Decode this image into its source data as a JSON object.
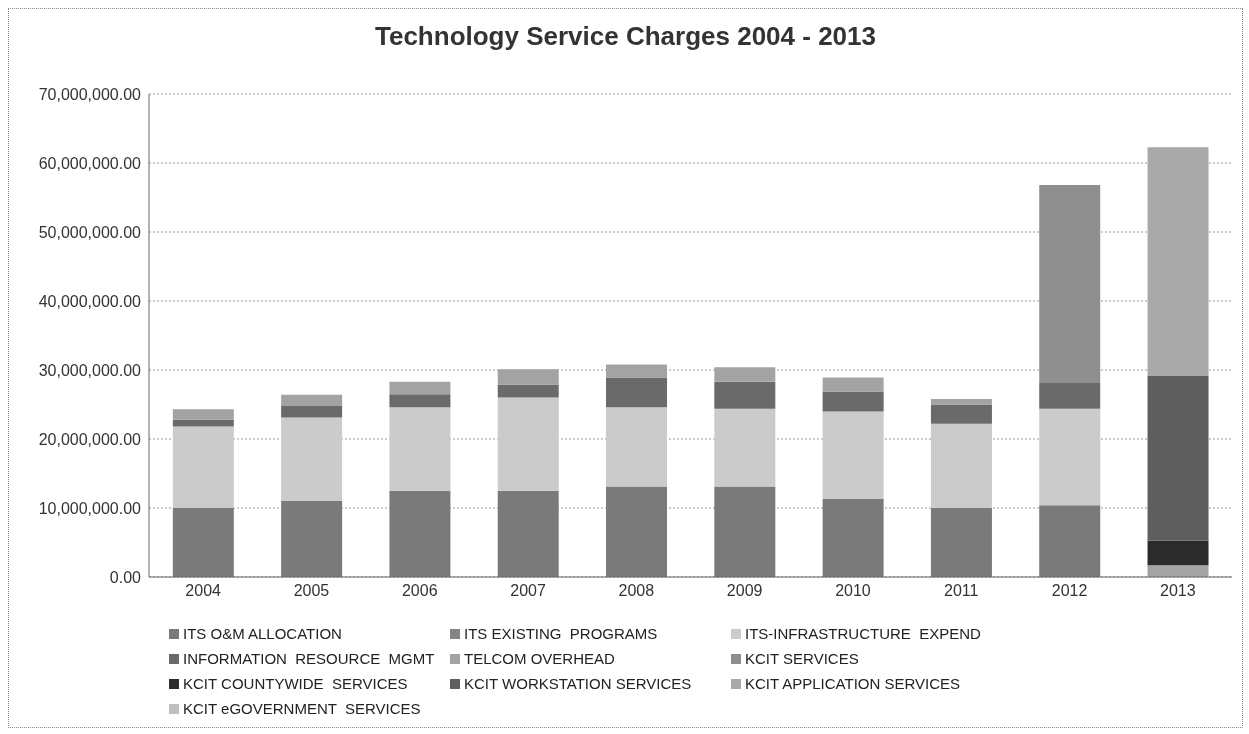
{
  "chart_data": {
    "type": "bar",
    "title": "Technology Service Charges 2004 - 2013",
    "stacked": true,
    "grid": "y",
    "legend": "bottom",
    "categories": [
      "2004",
      "2005",
      "2006",
      "2007",
      "2008",
      "2009",
      "2010",
      "2011",
      "2012",
      "2013"
    ],
    "ylim": [
      0,
      70000000
    ],
    "yticks": [
      {
        "value": 0,
        "label": "0.00"
      },
      {
        "value": 10000000,
        "label": "10,000,000.00"
      },
      {
        "value": 20000000,
        "label": "20,000,000.00"
      },
      {
        "value": 30000000,
        "label": "30,000,000.00"
      },
      {
        "value": 40000000,
        "label": "40,000,000.00"
      },
      {
        "value": 50000000,
        "label": "50,000,000.00"
      },
      {
        "value": 60000000,
        "label": "60,000,000.00"
      },
      {
        "value": 70000000,
        "label": "70,000,000.00"
      }
    ],
    "series": [
      {
        "name": "ITS O&M ALLOCATION",
        "color": "#7a7a7a",
        "values": [
          10000000,
          11000000,
          12500000,
          12500000,
          13100000,
          13100000,
          11300000,
          10000000,
          10400000,
          null
        ]
      },
      {
        "name": "ITS EXISTING  PROGRAMS",
        "color": "#858585",
        "values": [
          null,
          null,
          null,
          null,
          null,
          null,
          null,
          null,
          null,
          null
        ]
      },
      {
        "name": "ITS-INFRASTRUCTURE  EXPEND",
        "color": "#cbcbcb",
        "values": [
          11800000,
          12100000,
          12100000,
          13500000,
          11500000,
          11300000,
          12700000,
          12200000,
          14000000,
          null
        ]
      },
      {
        "name": "INFORMATION  RESOURCE  MGMT",
        "color": "#6a6a6a",
        "values": [
          1000000,
          1700000,
          1900000,
          1900000,
          4300000,
          3900000,
          2900000,
          2800000,
          3700000,
          null
        ]
      },
      {
        "name": "TELCOM OVERHEAD",
        "color": "#a3a3a3",
        "values": [
          1500000,
          1600000,
          1800000,
          2200000,
          1900000,
          2100000,
          2000000,
          800000,
          null,
          1700000
        ]
      },
      {
        "name": "KCIT SERVICES",
        "color": "#8f8f8f",
        "values": [
          null,
          null,
          null,
          null,
          null,
          null,
          null,
          null,
          28700000,
          null
        ]
      },
      {
        "name": "KCIT COUNTYWIDE  SERVICES",
        "color": "#2b2b2b",
        "values": [
          null,
          null,
          null,
          null,
          null,
          null,
          null,
          null,
          null,
          3600000
        ]
      },
      {
        "name": "KCIT WORKSTATION SERVICES",
        "color": "#5e5e5e",
        "values": [
          null,
          null,
          null,
          null,
          null,
          null,
          null,
          null,
          null,
          23900000
        ]
      },
      {
        "name": "KCIT APPLICATION SERVICES",
        "color": "#a9a9a9",
        "values": [
          null,
          null,
          null,
          null,
          null,
          null,
          null,
          null,
          null,
          33100000
        ]
      },
      {
        "name": "KCIT eGOVERNMENT  SERVICES",
        "color": "#c0c0c0",
        "values": [
          null,
          null,
          null,
          null,
          null,
          null,
          null,
          null,
          null,
          null
        ]
      }
    ]
  }
}
